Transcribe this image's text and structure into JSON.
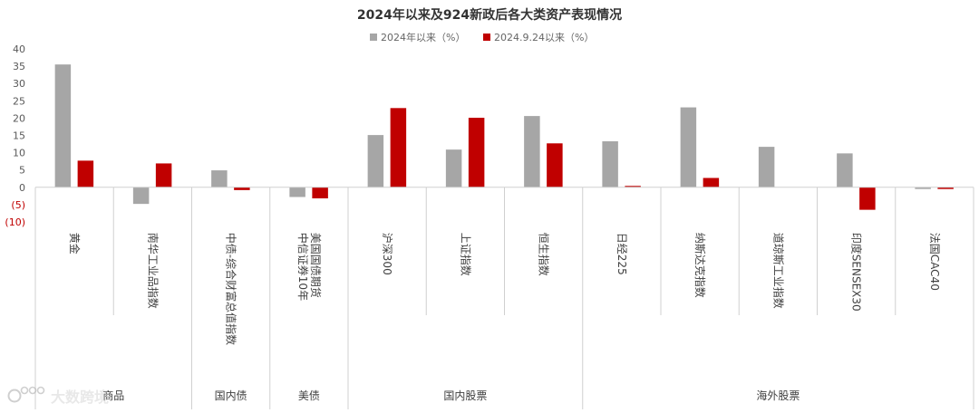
{
  "chart_data": {
    "type": "bar",
    "title": "2024年以来及924新政后各大类资产表现情况",
    "categories": [
      "黄金",
      "南华工业品指数",
      "中债-综合财富总值指数",
      "中信证券10年美国国债期货",
      "沪深300",
      "上证指数",
      "恒生指数",
      "日经225",
      "纳斯达克指数",
      "道琼斯工业指数",
      "印度SENSEX30",
      "法国CAC40"
    ],
    "groups": [
      {
        "label": "商品",
        "span": 2
      },
      {
        "label": "国内债",
        "span": 1
      },
      {
        "label": "美债",
        "span": 1
      },
      {
        "label": "国内股票",
        "span": 3
      },
      {
        "label": "海外股票",
        "span": 5
      }
    ],
    "series": [
      {
        "name": "2024年以来（%）",
        "color": "#a6a6a6",
        "values": [
          35.5,
          -4.8,
          4.9,
          -2.8,
          15.1,
          10.9,
          20.6,
          13.3,
          23.1,
          11.7,
          9.8,
          -0.5
        ]
      },
      {
        "name": "2024.9.24以来（%）",
        "color": "#c00000",
        "values": [
          7.7,
          6.9,
          -0.8,
          -3.2,
          22.9,
          20.1,
          12.7,
          0.4,
          2.7,
          0.0,
          -6.5,
          -0.5
        ]
      }
    ],
    "ylim": [
      -10,
      40
    ],
    "yticks": [
      -10,
      -5,
      0,
      5,
      10,
      15,
      20,
      25,
      30,
      35,
      40
    ],
    "ytick_labels": [
      "(10)",
      "(5)",
      "0",
      "5",
      "10",
      "15",
      "20",
      "25",
      "30",
      "35",
      "40"
    ],
    "negative_tick_color": "#c00000",
    "legend_position": "top-center",
    "grid": false
  },
  "watermark": {
    "text": "大数跨境",
    "icon": "logo-icon"
  }
}
